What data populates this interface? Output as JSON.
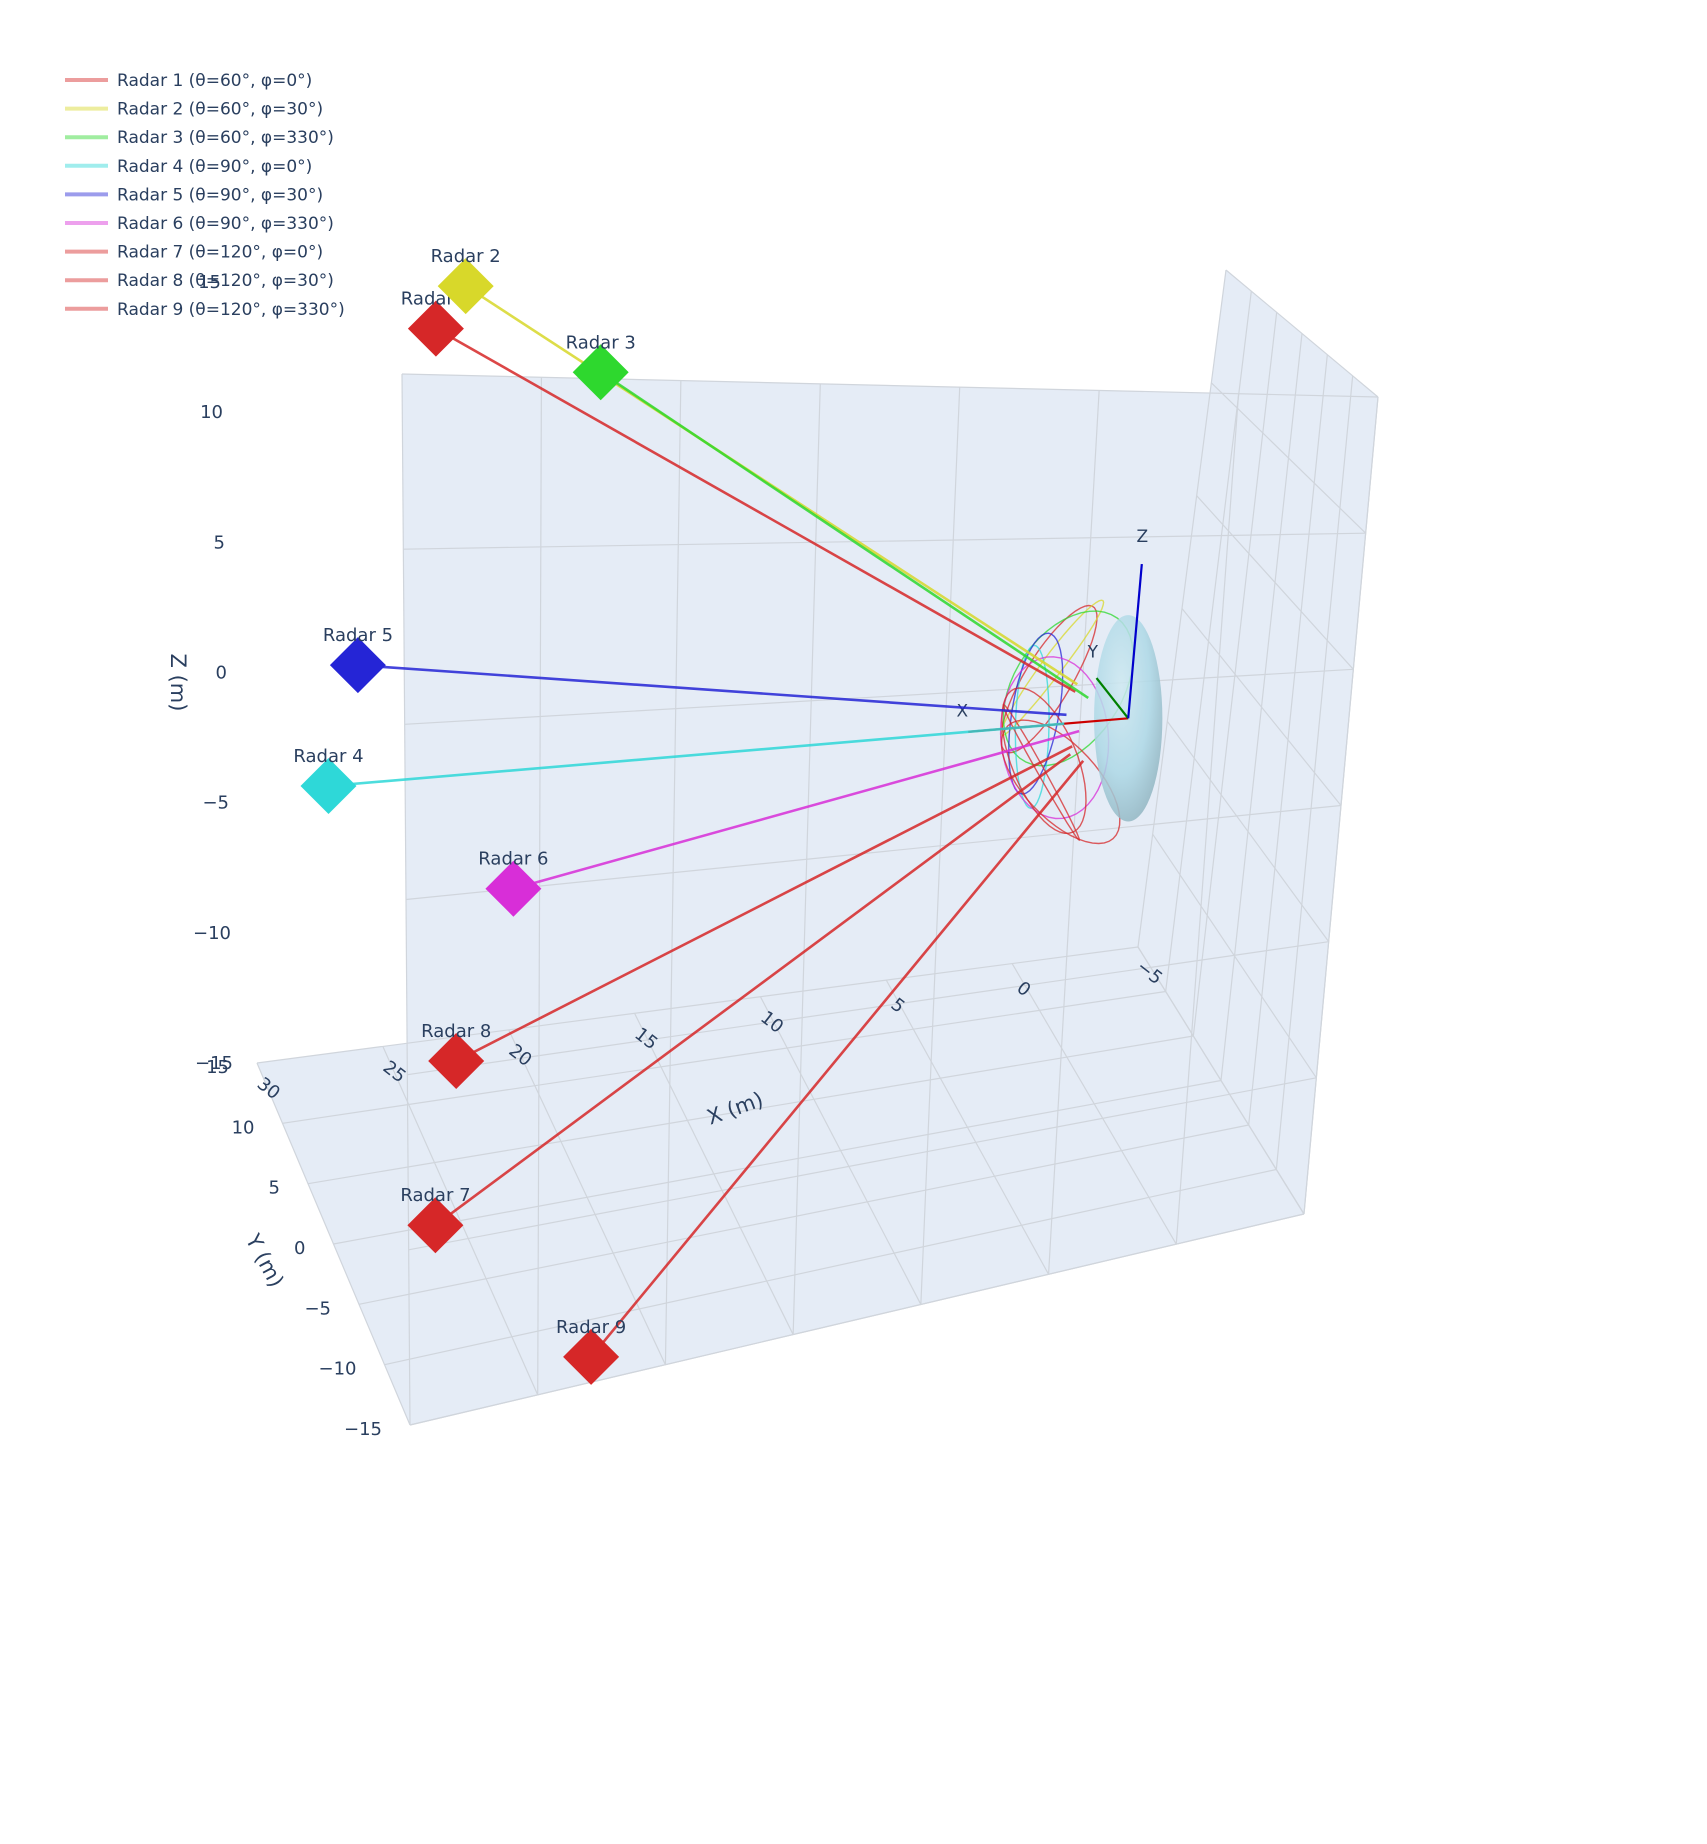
{
  "chart_data": {
    "type": "scatter3d",
    "legend_position": "top-left",
    "legend": [
      {
        "name": "Radar 1 (θ=60°, φ=0°)",
        "color": "#d62728"
      },
      {
        "name": "Radar 2 (θ=60°, φ=30°)",
        "color": "#d8d82a"
      },
      {
        "name": "Radar 3 (θ=60°, φ=330°)",
        "color": "#2ed82e"
      },
      {
        "name": "Radar 4 (θ=90°, φ=0°)",
        "color": "#2ed8d8"
      },
      {
        "name": "Radar 5 (θ=90°, φ=30°)",
        "color": "#2525d6"
      },
      {
        "name": "Radar 6 (θ=90°, φ=330°)",
        "color": "#d82ed8"
      },
      {
        "name": "Radar 7 (θ=120°, φ=0°)",
        "color": "#d62728"
      },
      {
        "name": "Radar 8 (θ=120°, φ=30°)",
        "color": "#d62728"
      },
      {
        "name": "Radar 9 (θ=120°, φ=330°)",
        "color": "#d62728"
      }
    ],
    "radars": [
      {
        "label": "Radar 1",
        "theta_deg": 60,
        "phi_deg": 0,
        "x": 25.98,
        "y": 0,
        "z": 15,
        "color": "#d62728"
      },
      {
        "label": "Radar 2",
        "theta_deg": 60,
        "phi_deg": 30,
        "x": 22.5,
        "y": 12.99,
        "z": 15,
        "color": "#d8d82a"
      },
      {
        "label": "Radar 3",
        "theta_deg": 60,
        "phi_deg": 330,
        "x": 22.5,
        "y": -12.99,
        "z": 15,
        "color": "#2ed82e"
      },
      {
        "label": "Radar 4",
        "theta_deg": 90,
        "phi_deg": 0,
        "x": 30,
        "y": 0,
        "z": 0,
        "color": "#2ed8d8"
      },
      {
        "label": "Radar 5",
        "theta_deg": 90,
        "phi_deg": 30,
        "x": 25.98,
        "y": 15,
        "z": 0,
        "color": "#2525d6"
      },
      {
        "label": "Radar 6",
        "theta_deg": 90,
        "phi_deg": 330,
        "x": 25.98,
        "y": -15,
        "z": 0,
        "color": "#d82ed8"
      },
      {
        "label": "Radar 7",
        "theta_deg": 120,
        "phi_deg": 0,
        "x": 25.98,
        "y": 0,
        "z": -15,
        "color": "#d62728"
      },
      {
        "label": "Radar 8",
        "theta_deg": 120,
        "phi_deg": 30,
        "x": 22.5,
        "y": 12.99,
        "z": -15,
        "color": "#d62728"
      },
      {
        "label": "Radar 9",
        "theta_deg": 120,
        "phi_deg": 330,
        "x": 22.5,
        "y": -12.99,
        "z": -15,
        "color": "#d62728"
      }
    ],
    "target_sphere": {
      "center": [
        0,
        0,
        0
      ],
      "radius": 4,
      "color": "#add8e6"
    },
    "frame_axes": [
      {
        "label": "X",
        "to": [
          6,
          0,
          0
        ],
        "color": "#cc0000"
      },
      {
        "label": "Y",
        "to": [
          0,
          6,
          0
        ],
        "color": "#008000"
      },
      {
        "label": "Z",
        "to": [
          0,
          0,
          6
        ],
        "color": "#0000cc"
      }
    ],
    "axes": {
      "x": {
        "title": "X (m)",
        "range": [
          -5,
          30
        ],
        "ticks": [
          -5,
          0,
          5,
          10,
          15,
          20,
          25,
          30
        ]
      },
      "y": {
        "title": "Y (m)",
        "range": [
          -15,
          15
        ],
        "ticks": [
          -15,
          -10,
          -5,
          0,
          5,
          10,
          15
        ]
      },
      "z": {
        "title": "Z (m)",
        "range": [
          -15,
          15
        ],
        "ticks": [
          -15,
          -10,
          -5,
          0,
          5,
          10,
          15
        ]
      }
    },
    "grid": true,
    "background": "#e5ecf6"
  }
}
